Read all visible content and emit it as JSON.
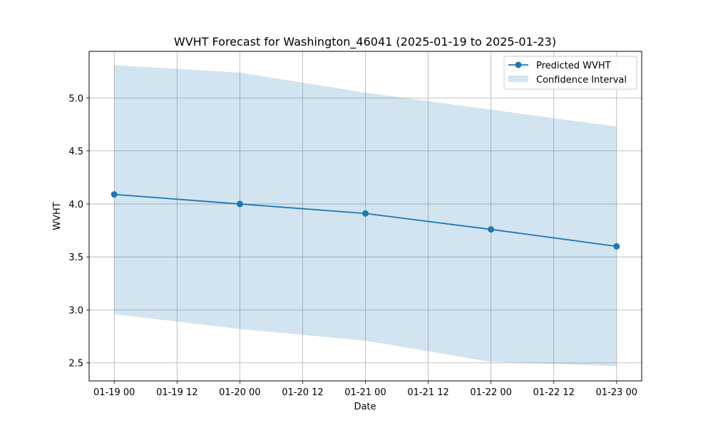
{
  "chart_data": {
    "type": "line",
    "title": "WVHT Forecast for Washington_46041 (2025-01-19 to 2025-01-23)",
    "xlabel": "Date",
    "ylabel": "WVHT",
    "x_tick_labels": [
      "01-19 00",
      "01-19 12",
      "01-20 00",
      "01-20 12",
      "01-21 00",
      "01-21 12",
      "01-22 00",
      "01-22 12",
      "01-23 00"
    ],
    "x_ticks": [
      "2025-01-19 00:00",
      "2025-01-19 12:00",
      "2025-01-20 00:00",
      "2025-01-20 12:00",
      "2025-01-21 00:00",
      "2025-01-21 12:00",
      "2025-01-22 00:00",
      "2025-01-22 12:00",
      "2025-01-23 00:00"
    ],
    "y_tick_labels": [
      "2.5",
      "3.0",
      "3.5",
      "4.0",
      "4.5",
      "5.0"
    ],
    "y_ticks": [
      2.5,
      3.0,
      3.5,
      4.0,
      4.5,
      5.0
    ],
    "xlim": [
      "2025-01-18 19:12",
      "2025-01-23 04:48"
    ],
    "ylim": [
      2.33,
      5.44
    ],
    "grid": true,
    "legend_position": "top-right",
    "x": [
      "2025-01-19",
      "2025-01-20",
      "2025-01-21",
      "2025-01-22",
      "2025-01-23"
    ],
    "series": [
      {
        "name": "Predicted WVHT",
        "kind": "line-marker",
        "color": "#1f77b4",
        "values": [
          4.09,
          4.0,
          3.91,
          3.76,
          3.6
        ]
      },
      {
        "name": "Confidence Interval",
        "kind": "band",
        "color": "#1f77b4",
        "opacity": 0.2,
        "upper": [
          5.31,
          5.24,
          5.05,
          4.89,
          4.73
        ],
        "lower": [
          2.96,
          2.82,
          2.71,
          2.51,
          2.47
        ]
      }
    ]
  }
}
